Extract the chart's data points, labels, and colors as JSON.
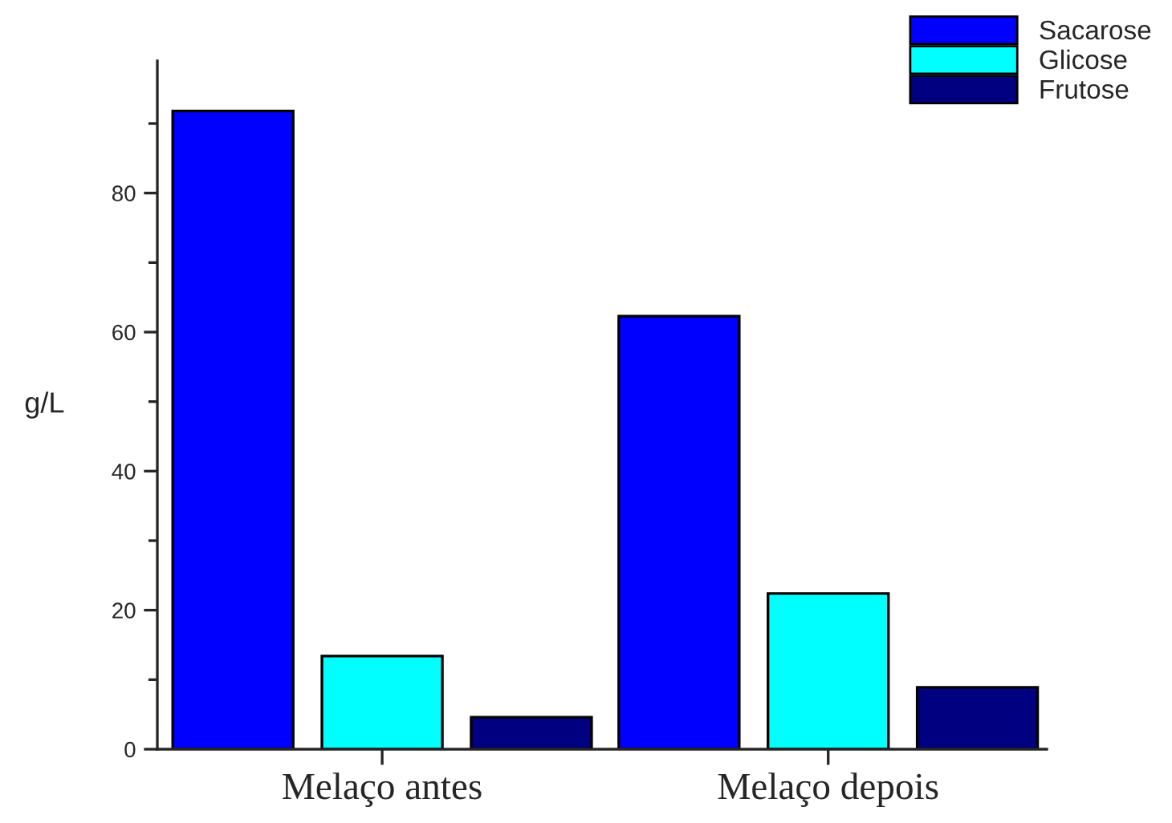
{
  "chart_data": {
    "type": "bar",
    "ylabel": "g/L",
    "categories": [
      "Melaço antes",
      "Melaço depois"
    ],
    "series": [
      {
        "name": "Sacarose",
        "color": "#0000ff",
        "values": [
          91.8,
          62.3
        ]
      },
      {
        "name": "Glicose",
        "color": "#00ffff",
        "values": [
          13.4,
          22.4
        ]
      },
      {
        "name": "Frutose",
        "color": "#000080",
        "values": [
          4.6,
          8.9
        ]
      }
    ],
    "ylim": [
      0,
      99
    ],
    "yticks": [
      0,
      20,
      40,
      60,
      80
    ],
    "grid": false,
    "legend": "top right"
  }
}
